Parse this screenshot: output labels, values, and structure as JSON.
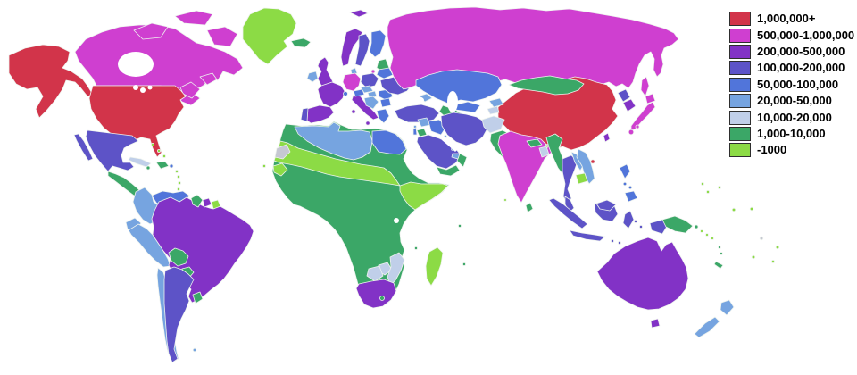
{
  "map": {
    "background_color": "#ffffff",
    "border_color": "#eef3ee",
    "no_data_color": "#c6c8d2",
    "countries": {
      "usa": "cat1",
      "alaska": "cat1",
      "canada": "cat2",
      "greenland": "cat9",
      "mexico": "cat4",
      "central-america": "cat8",
      "cuba": "cat7",
      "hispaniola": "cat8",
      "jamaica": "cat8",
      "puerto-rico": "cat5",
      "bahamas": "cat9",
      "lesser-antilles": "cat9",
      "trinidad": "cat8",
      "venezuela": "cat5",
      "colombia": "cat6",
      "ecuador": "cat6",
      "peru": "cat6",
      "brazil": "cat3",
      "guyana": "cat8",
      "suriname": "cat3",
      "french-guiana": "cat9",
      "bolivia": "cat8",
      "paraguay": "cat8",
      "chile": "cat6",
      "argentina": "cat4",
      "uruguay": "cat8",
      "falklands": "cat6",
      "iceland": "cat8",
      "uk": "cat3",
      "ireland": "cat6",
      "norway": "cat3",
      "svalbard": "cat3",
      "sweden": "cat4",
      "finland": "cat5",
      "denmark": "cat6",
      "baltics": "cat8",
      "germany": "cat2",
      "france": "cat3",
      "spain": "cat3",
      "portugal": "cat4",
      "italy": "cat3",
      "switzerland": "cat5",
      "austria": "cat5",
      "poland": "cat4",
      "czech-slovakia": "cat6",
      "hungary": "cat6",
      "balkans": "cat6",
      "romania": "cat5",
      "bulgaria": "cat5",
      "greece": "cat5",
      "ukraine": "cat4",
      "belarus": "cat5",
      "russia": "cat2",
      "kazakhstan": "cat5",
      "uzbekistan": "cat5",
      "turkmenistan": "cat8",
      "kyrgyzstan": "cat6",
      "tajikistan": "cat7",
      "caucasus": "cat6",
      "turkey": "cat4",
      "cyprus": "cat6",
      "syria": "cat6",
      "israel": "cat5",
      "jordan": "cat8",
      "iraq": "cat5",
      "saudi-arabia": "cat4",
      "yemen": "cat8",
      "oman": "cat8",
      "uae": "cat6",
      "kuwait": "cat6",
      "qatar": "cat6",
      "iran": "cat4",
      "afghanistan": "cat7",
      "pakistan": "cat8",
      "india": "cat2",
      "nepal": "cat8",
      "bhutan": "cat9",
      "bangladesh": "cat7",
      "sri-lanka": "cat8",
      "maldives": "cat9",
      "china": "cat1",
      "hainan": "cat1",
      "mongolia": "cat8",
      "north-korea": "cat4",
      "south-korea": "cat3",
      "japan": "cat2",
      "taiwan": "cat3",
      "myanmar": "cat8",
      "thailand": "cat4",
      "laos": "cat6",
      "vietnam": "cat6",
      "cambodia": "cat9",
      "malaysia": "cat4",
      "singapore": "cat5",
      "indonesia": "cat4",
      "philippines": "cat5",
      "papua-new-guinea": "cat8",
      "australia": "cat3",
      "new-zealand": "cat6",
      "new-caledonia": "cat8",
      "vanuatu": "cat8",
      "fiji": "cat9",
      "solomon-islands": "cat9",
      "pacific-islands": "cat9",
      "pacific-no-data": "nodata",
      "africa-base": "cat8",
      "sahara-band": "cat9",
      "ethiopia-somalia": "cat9",
      "west-africa-coast": "cat9",
      "algeria-libya": "cat6",
      "egypt": "cat5",
      "western-sahara": "nodata",
      "zimbabwe": "cat7",
      "mozambique": "cat7",
      "botswana": "cat7",
      "south-africa": "cat3",
      "lesotho": "cat8",
      "madagascar": "cat9",
      "comoros": "cat8",
      "seychelles": "cat8",
      "mauritius": "cat8",
      "cape-verde": "cat9"
    }
  },
  "legend": {
    "items": [
      {
        "key": "cat1",
        "label": "1,000,000+",
        "color": "#d2344a"
      },
      {
        "key": "cat2",
        "label": "500,000-1,000,000",
        "color": "#cf3fd0"
      },
      {
        "key": "cat3",
        "label": "200,000-500,000",
        "color": "#8232c6"
      },
      {
        "key": "cat4",
        "label": "100,000-200,000",
        "color": "#5d53c7"
      },
      {
        "key": "cat5",
        "label": "50,000-100,000",
        "color": "#5175da"
      },
      {
        "key": "cat6",
        "label": "20,000-50,000",
        "color": "#76a4e0"
      },
      {
        "key": "cat7",
        "label": "10,000-20,000",
        "color": "#c0cfe9"
      },
      {
        "key": "cat8",
        "label": "1,000-10,000",
        "color": "#3ba767"
      },
      {
        "key": "cat9",
        "label": "-1000",
        "color": "#8cdb45"
      }
    ]
  },
  "chart_data": {
    "type": "heatmap",
    "title": "World choropleth map, values per country",
    "legend_position": "top-right",
    "categories": [
      "1,000,000+",
      "500,000-1,000,000",
      "200,000-500,000",
      "100,000-200,000",
      "50,000-100,000",
      "20,000-50,000",
      "10,000-20,000",
      "1,000-10,000",
      "-1000"
    ],
    "category_colors": [
      "#d2344a",
      "#cf3fd0",
      "#8232c6",
      "#5d53c7",
      "#5175da",
      "#76a4e0",
      "#c0cfe9",
      "#3ba767",
      "#8cdb45"
    ]
  }
}
